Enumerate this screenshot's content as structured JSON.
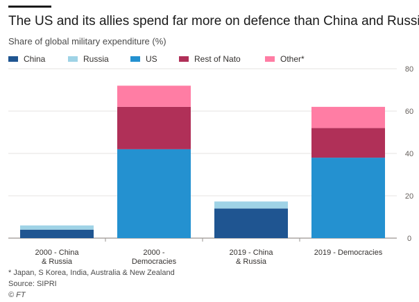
{
  "title": "The US and its allies spend far more on defence than China and Russia",
  "subtitle": "Share of global military expenditure (%)",
  "footnote": "* Japan, S Korea, India, Australia & New Zealand",
  "source": "Source: SIPRI",
  "credit": "© FT",
  "colors": {
    "China": "#1f5591",
    "Russia": "#9fd3e6",
    "US": "#2491d0",
    "Rest of Nato": "#b03058",
    "Other*": "#ff7da4"
  },
  "chart_data": {
    "type": "bar",
    "stacked": true,
    "categories": [
      "2000 - China & Russia",
      "2000 - Democracies",
      "2019 - China & Russia",
      "2019 - Democracies"
    ],
    "category_labels": [
      [
        "2000 - China",
        "& Russia"
      ],
      [
        "2000 -",
        "Democracies"
      ],
      [
        "2019 - China",
        "& Russia"
      ],
      [
        "2019 - Democracies"
      ]
    ],
    "series": [
      {
        "name": "China",
        "values": [
          4,
          0,
          14,
          0
        ]
      },
      {
        "name": "Russia",
        "values": [
          2,
          0,
          3.3,
          0
        ]
      },
      {
        "name": "US",
        "values": [
          0,
          42,
          0,
          38
        ]
      },
      {
        "name": "Rest of Nato",
        "values": [
          0,
          20,
          0,
          14
        ]
      },
      {
        "name": "Other*",
        "values": [
          0,
          10,
          0,
          10
        ]
      }
    ],
    "ylim": [
      0,
      80
    ],
    "yticks": [
      0,
      20,
      40,
      60,
      80
    ],
    "y_axis_side": "right",
    "grid": true,
    "legend_position": "top"
  }
}
